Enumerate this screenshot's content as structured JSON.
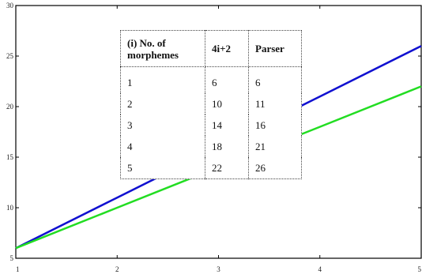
{
  "chart_data": {
    "type": "line",
    "x": [
      1,
      2,
      3,
      4,
      5
    ],
    "xlim": [
      1,
      5
    ],
    "ylim": [
      5,
      30
    ],
    "xticks": [
      "1",
      "2",
      "3",
      "4",
      "5"
    ],
    "yticks": [
      "5",
      "10",
      "15",
      "20",
      "25",
      "30"
    ],
    "title": "",
    "xlabel": "",
    "ylabel": "",
    "series": [
      {
        "color": "#1010d0",
        "values": [
          6,
          11,
          16,
          21,
          26
        ]
      },
      {
        "color": "#22dd22",
        "values": [
          6,
          10,
          14,
          18,
          22
        ]
      }
    ],
    "table": {
      "headers": [
        "(i) No. of morphemes",
        "4i+2",
        "Parser"
      ],
      "rows": [
        [
          "1",
          "6",
          "6"
        ],
        [
          "2",
          "10",
          "11"
        ],
        [
          "3",
          "14",
          "16"
        ],
        [
          "4",
          "18",
          "21"
        ],
        [
          "5",
          "22",
          "26"
        ]
      ]
    }
  }
}
